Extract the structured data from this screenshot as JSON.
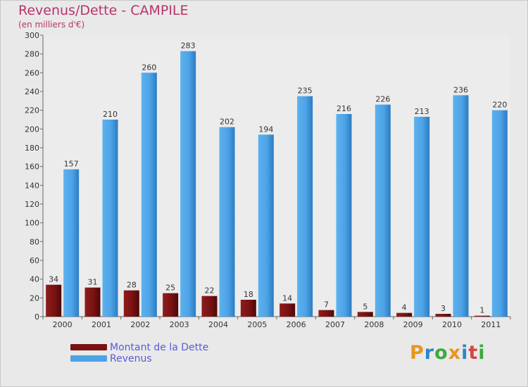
{
  "header": {
    "title": "Revenus/Dette - CAMPILE",
    "subtitle": "(en milliers d'€)"
  },
  "logo": {
    "letters": [
      "P",
      "r",
      "o",
      "x",
      "i",
      "t",
      "i"
    ],
    "colors": [
      "#e8961e",
      "#2f86c6",
      "#3ea83e",
      "#e8961e",
      "#2f86c6",
      "#d64545",
      "#3ea83e"
    ]
  },
  "colors": {
    "debt": "#7a1212",
    "revenue": "#4da3e6",
    "background": "#e9e9e9",
    "plot_area": "#ececec",
    "axis": "#666666"
  },
  "chart_data": {
    "type": "bar",
    "title": "Revenus/Dette - CAMPILE",
    "subtitle": "(en milliers d'€)",
    "xlabel": "",
    "ylabel": "",
    "categories": [
      "2000",
      "2001",
      "2002",
      "2003",
      "2004",
      "2005",
      "2006",
      "2007",
      "2008",
      "2009",
      "2010",
      "2011"
    ],
    "series": [
      {
        "name": "Montant de la Dette",
        "values": [
          34,
          31,
          28,
          25,
          22,
          18,
          14,
          7,
          5,
          4,
          3,
          1
        ]
      },
      {
        "name": "Revenus",
        "values": [
          157,
          210,
          260,
          283,
          202,
          194,
          235,
          216,
          226,
          213,
          236,
          220
        ]
      }
    ],
    "ylim": [
      0,
      300
    ],
    "yticks": [
      0,
      20,
      40,
      60,
      80,
      100,
      120,
      140,
      160,
      180,
      200,
      220,
      240,
      260,
      280,
      300
    ],
    "grid": false,
    "legend": "bottom-left"
  }
}
